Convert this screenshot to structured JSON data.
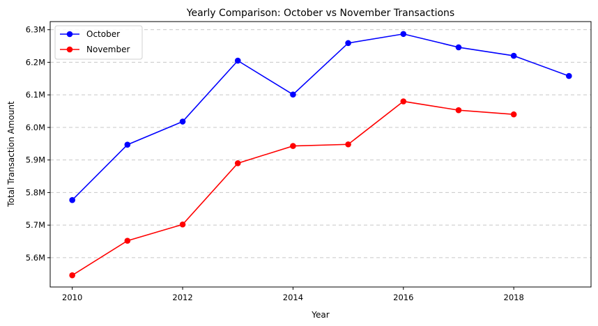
{
  "chart_data": {
    "type": "line",
    "title": "Yearly Comparison: October vs November Transactions",
    "xlabel": "Year",
    "ylabel": "Total Transaction Amount",
    "xlim": [
      2009.6,
      2019.4
    ],
    "ylim": [
      5510000,
      6325000
    ],
    "x_ticks": [
      2010,
      2012,
      2014,
      2016,
      2018
    ],
    "x_tick_labels": [
      "2010",
      "2012",
      "2014",
      "2016",
      "2018"
    ],
    "y_ticks": [
      5600000,
      5700000,
      5800000,
      5900000,
      6000000,
      6100000,
      6200000,
      6300000
    ],
    "y_tick_labels": [
      "5.6M",
      "5.7M",
      "5.8M",
      "5.9M",
      "6.0M",
      "6.1M",
      "6.2M",
      "6.3M"
    ],
    "grid": "y-dashed",
    "legend_position": "top-left",
    "series": [
      {
        "name": "October",
        "color": "#0000ff",
        "x": [
          2010,
          2011,
          2012,
          2013,
          2014,
          2015,
          2016,
          2017,
          2018,
          2019
        ],
        "values": [
          5777000,
          5947000,
          6018000,
          6205000,
          6101000,
          6259000,
          6287000,
          6246000,
          6220000,
          6158000
        ]
      },
      {
        "name": "November",
        "color": "#ff0000",
        "x": [
          2010,
          2011,
          2012,
          2013,
          2014,
          2015,
          2016,
          2017,
          2018
        ],
        "values": [
          5546000,
          5652000,
          5702000,
          5890000,
          5943000,
          5948000,
          6080000,
          6053000,
          6040000
        ]
      }
    ]
  }
}
